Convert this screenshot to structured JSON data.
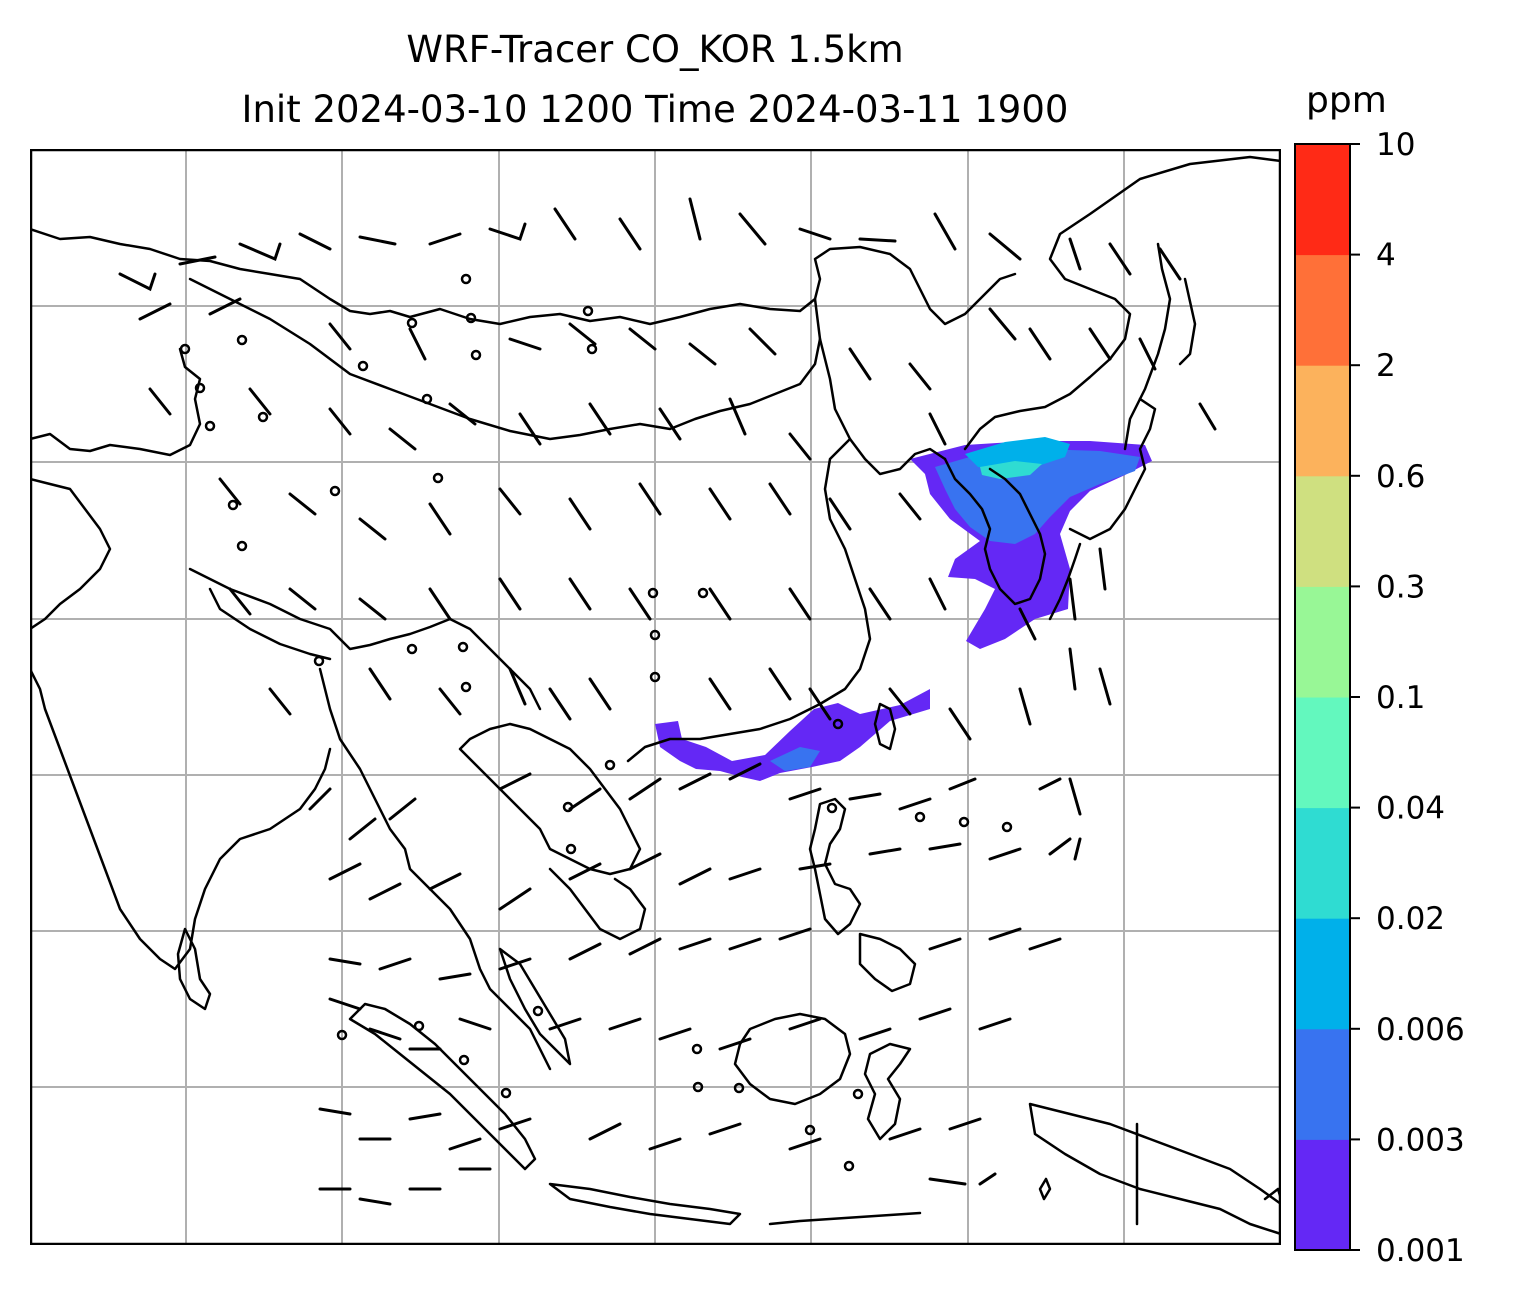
{
  "header": {
    "title_line1": "WRF-Tracer CO_KOR 1.5km",
    "title_line2": "Init 2024-03-10 1200 Time 2024-03-11 1900"
  },
  "colorbar": {
    "unit": "ppm",
    "levels": [
      "0.001",
      "0.003",
      "0.006",
      "0.02",
      "0.04",
      "0.1",
      "0.3",
      "0.6",
      "2",
      "4",
      "10"
    ],
    "colors": [
      "#6428f5",
      "#3873f0",
      "#00b0ea",
      "#2fdcd2",
      "#63f8be",
      "#98f796",
      "#cfe080",
      "#fcb25c",
      "#ff7038",
      "#ff2a16"
    ]
  },
  "map": {
    "gridlines": true,
    "plume_colors": {
      "outer": "#6428f5",
      "mid": "#3873f0",
      "core": "#00b0ea",
      "peak": "#2fdcd2"
    }
  }
}
